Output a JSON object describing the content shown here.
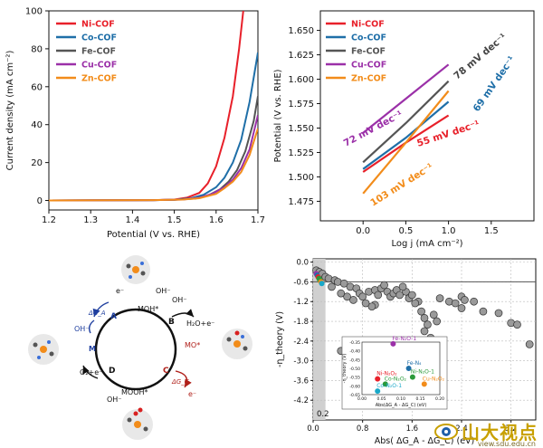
{
  "chart_data": [
    {
      "type": "line",
      "xlabel": "Potential (V vs. RHE)",
      "ylabel": "Current density (mA cm⁻²)",
      "xlim": [
        1.2,
        1.7
      ],
      "ylim": [
        -5,
        100
      ],
      "xticks": [
        "1.2",
        "1.3",
        "1.4",
        "1.5",
        "1.6",
        "1.7"
      ],
      "yticks": [
        "0",
        "20",
        "40",
        "60",
        "80",
        "100"
      ],
      "legend_position": "top-left",
      "series": [
        {
          "name": "Ni-COF",
          "color": "#e8202a",
          "x": [
            1.2,
            1.45,
            1.5,
            1.53,
            1.56,
            1.58,
            1.6,
            1.62,
            1.64,
            1.655,
            1.665
          ],
          "y": [
            0,
            0.2,
            0.5,
            1.5,
            4,
            9,
            18,
            33,
            55,
            80,
            100
          ]
        },
        {
          "name": "Co-COF",
          "color": "#1f6fa8",
          "x": [
            1.2,
            1.45,
            1.5,
            1.54,
            1.57,
            1.6,
            1.62,
            1.64,
            1.66,
            1.68,
            1.7
          ],
          "y": [
            0,
            0.2,
            0.4,
            1.2,
            3,
            7,
            12,
            20,
            32,
            52,
            78
          ]
        },
        {
          "name": "Fe-COF",
          "color": "#555555",
          "x": [
            1.2,
            1.45,
            1.5,
            1.55,
            1.58,
            1.61,
            1.63,
            1.65,
            1.67,
            1.69,
            1.7
          ],
          "y": [
            0,
            0.2,
            0.4,
            1,
            2.5,
            6,
            10,
            16,
            26,
            42,
            55
          ]
        },
        {
          "name": "Cu-COF",
          "color": "#9b30a8",
          "x": [
            1.2,
            1.45,
            1.52,
            1.56,
            1.59,
            1.62,
            1.64,
            1.66,
            1.68,
            1.7
          ],
          "y": [
            0,
            0.2,
            0.5,
            1.5,
            3.5,
            7,
            11,
            17,
            27,
            45
          ]
        },
        {
          "name": "Zn-COF",
          "color": "#f28c1a",
          "x": [
            1.2,
            1.45,
            1.52,
            1.56,
            1.6,
            1.62,
            1.64,
            1.66,
            1.68,
            1.7
          ],
          "y": [
            0,
            0.2,
            0.5,
            1.2,
            3.5,
            6.5,
            10,
            15,
            24,
            38
          ]
        }
      ]
    },
    {
      "type": "line",
      "xlabel": "Log j (mA cm⁻²)",
      "ylabel": "Potential (V vs. RHE)",
      "xlim": [
        -0.5,
        2.0
      ],
      "ylim": [
        1.455,
        1.67
      ],
      "xticks": [
        "0.0",
        "0.5",
        "1.0",
        "1.5"
      ],
      "yticks": [
        "1.475",
        "1.500",
        "1.525",
        "1.550",
        "1.575",
        "1.600",
        "1.625",
        "1.650"
      ],
      "legend_position": "top-left",
      "series": [
        {
          "name": "Ni-COF",
          "color": "#e8202a",
          "x": [
            0,
            0.5,
            1.0
          ],
          "y": [
            1.505,
            1.535,
            1.563
          ]
        },
        {
          "name": "Co-COF",
          "color": "#1f6fa8",
          "x": [
            0,
            0.5,
            1.0
          ],
          "y": [
            1.508,
            1.54,
            1.577
          ]
        },
        {
          "name": "Fe-COF",
          "color": "#555555",
          "x": [
            0,
            0.5,
            1.0
          ],
          "y": [
            1.515,
            1.555,
            1.598
          ]
        },
        {
          "name": "Cu-COF",
          "color": "#9b30a8",
          "x": [
            0,
            0.5,
            1.0
          ],
          "y": [
            1.545,
            1.58,
            1.615
          ]
        },
        {
          "name": "Zn-COF",
          "color": "#f28c1a",
          "x": [
            0,
            0.5,
            1.0
          ],
          "y": [
            1.483,
            1.535,
            1.588
          ]
        }
      ],
      "annotations": [
        {
          "text": "78 mV dec⁻¹",
          "color": "#444444"
        },
        {
          "text": "69 mV dec⁻¹",
          "color": "#1f6fa8"
        },
        {
          "text": "72 mV dec⁻¹",
          "color": "#9b30a8"
        },
        {
          "text": "55 mV dec⁻¹",
          "color": "#e8202a"
        },
        {
          "text": "103 mV dec⁻¹",
          "color": "#f28c1a"
        }
      ]
    },
    {
      "type": "scatter",
      "xlabel": "Abs( ΔG_A - ΔG_C) (eV)",
      "ylabel": "-η_theory (V)",
      "xlim": [
        0,
        3.6
      ],
      "ylim": [
        -4.8,
        0.1
      ],
      "xticks": [
        "0.0",
        "0.8",
        "1.6",
        "2.4",
        "3.2"
      ],
      "yticks": [
        "0.0",
        "-0.6",
        "-1.2",
        "-1.8",
        "-2.4",
        "-3.0",
        "-3.6",
        "-4.2"
      ],
      "corner_label": "0.2",
      "points": [
        [
          0.05,
          -0.25
        ],
        [
          0.1,
          -0.3
        ],
        [
          0.15,
          -0.35
        ],
        [
          0.2,
          -0.45
        ],
        [
          0.25,
          -0.5
        ],
        [
          0.35,
          -0.55
        ],
        [
          0.4,
          -0.6
        ],
        [
          0.5,
          -0.65
        ],
        [
          0.6,
          -0.75
        ],
        [
          0.7,
          -0.8
        ],
        [
          0.75,
          -0.95
        ],
        [
          0.8,
          -1.05
        ],
        [
          0.9,
          -0.9
        ],
        [
          1.0,
          -0.85
        ],
        [
          1.05,
          -1.0
        ],
        [
          1.1,
          -0.8
        ],
        [
          1.2,
          -0.9
        ],
        [
          1.25,
          -1.05
        ],
        [
          1.3,
          -0.95
        ],
        [
          1.35,
          -0.85
        ],
        [
          1.4,
          -1.0
        ],
        [
          1.5,
          -0.9
        ],
        [
          1.55,
          -1.1
        ],
        [
          1.6,
          -1.0
        ],
        [
          1.7,
          -1.2
        ],
        [
          1.75,
          -1.5
        ],
        [
          1.8,
          -1.7
        ],
        [
          1.85,
          -1.9
        ],
        [
          1.8,
          -2.1
        ],
        [
          1.9,
          -2.3
        ],
        [
          1.95,
          -1.6
        ],
        [
          2.0,
          -1.8
        ],
        [
          2.05,
          -1.1
        ],
        [
          2.2,
          -1.2
        ],
        [
          2.3,
          -1.25
        ],
        [
          2.4,
          -1.05
        ],
        [
          2.6,
          -1.2
        ],
        [
          2.75,
          -1.5
        ],
        [
          3.0,
          -1.55
        ],
        [
          3.2,
          -1.85
        ],
        [
          3.3,
          -1.9
        ],
        [
          3.5,
          -2.5
        ],
        [
          2.45,
          -1.15
        ],
        [
          1.65,
          -1.25
        ],
        [
          1.0,
          -1.3
        ],
        [
          0.95,
          -1.35
        ],
        [
          0.85,
          -1.25
        ],
        [
          0.65,
          -1.15
        ],
        [
          0.55,
          -1.05
        ],
        [
          0.45,
          -0.95
        ],
        [
          0.3,
          -0.75
        ],
        [
          0.45,
          -2.7
        ],
        [
          1.1,
          -2.55
        ],
        [
          1.65,
          -2.65
        ],
        [
          2.4,
          -1.4
        ],
        [
          1.45,
          -0.75
        ],
        [
          1.15,
          -0.7
        ]
      ],
      "inset": {
        "ylabel": "-η_theory (V)",
        "xlabel": "Abs(ΔG_A - ΔG_C) (eV)",
        "yticks": [
          "-0.35",
          "-0.40",
          "-0.45",
          "-0.50",
          "-0.55",
          "-0.60",
          "-0.65"
        ],
        "xticks": [
          "0.00",
          "0.05",
          "0.10",
          "0.15",
          "0.20"
        ],
        "points": [
          {
            "label": "Fe-N₂O-1",
            "color": "#9b30a8",
            "x": 0.08,
            "y": -0.36
          },
          {
            "label": "Fe-N₄",
            "color": "#1f6fa8",
            "x": 0.12,
            "y": -0.5
          },
          {
            "label": "Ni-N₂O₂",
            "color": "#e8202a",
            "x": 0.04,
            "y": -0.56
          },
          {
            "label": "Co-N₂O₂",
            "color": "#2a9a3a",
            "x": 0.06,
            "y": -0.59
          },
          {
            "label": "Ni-N₂O-1",
            "color": "#2a9a3a",
            "x": 0.13,
            "y": -0.55
          },
          {
            "label": "Cu-N₂O₂",
            "color": "#f28c1a",
            "x": 0.16,
            "y": -0.59
          },
          {
            "label": "Co-N₂O-1",
            "color": "#19a8c8",
            "x": 0.04,
            "y": -0.63
          }
        ]
      }
    }
  ],
  "cycle": {
    "labels": {
      "A": "A",
      "B": "B",
      "C": "C",
      "D": "D",
      "M": "M",
      "eminus1": "e⁻",
      "moh": "MOH*",
      "oh1": "OH⁻",
      "ga": "ΔG_A",
      "oh2": "OH⁻",
      "h2o_e": "H₂O+e⁻",
      "mo": "MO*",
      "eminus2": "e⁻",
      "gc": "ΔG_C",
      "mooh": "MOOH*",
      "o2_e": "O₂+e⁻",
      "oh3": "OH⁻",
      "oh4": "OH⁻"
    },
    "colors": {
      "blue": "#1f3f9f",
      "red": "#b0201a",
      "black": "#111111"
    }
  },
  "watermark": {
    "text": "山大视点",
    "url": "view.sdu.edu.cn"
  }
}
